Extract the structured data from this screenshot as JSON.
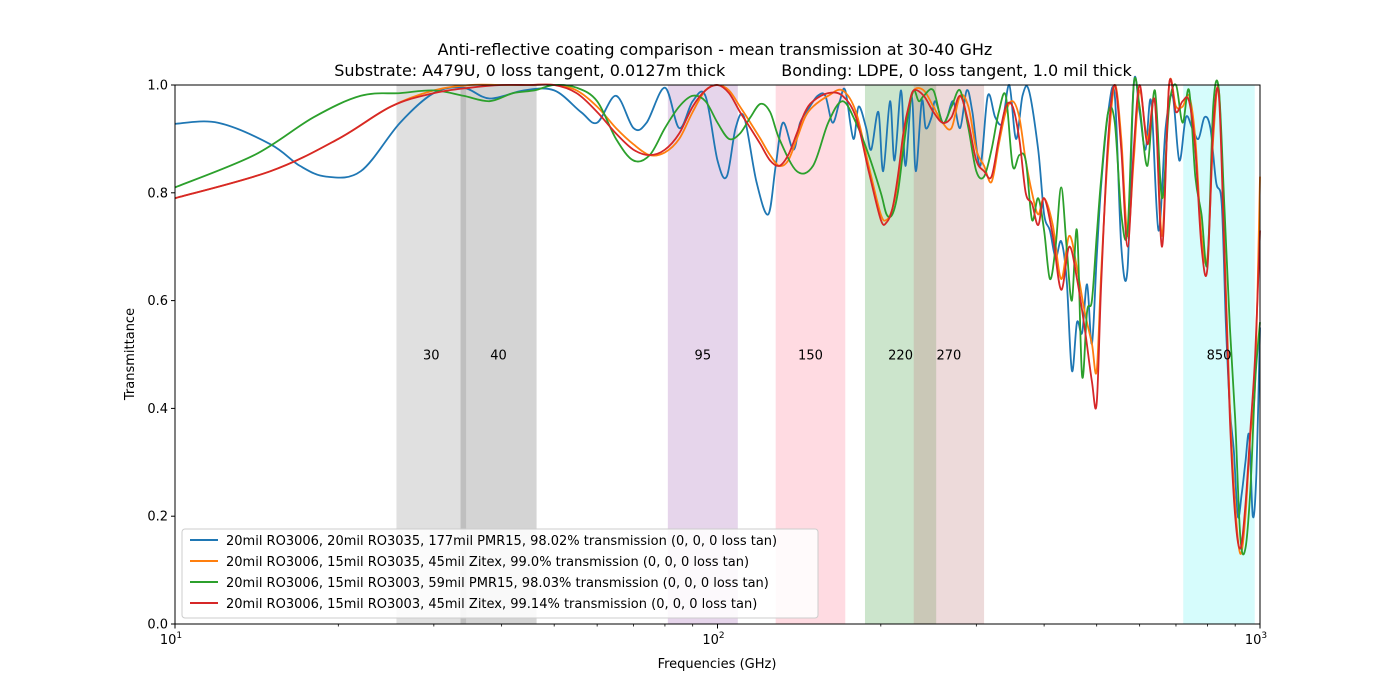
{
  "chart_data": {
    "type": "line",
    "title_line1": "Anti-reflective coating comparison - mean transmission at 30-40 GHz",
    "title_line2": "Substrate: A479U, 0 loss tangent, 0.0127m thick           Bonding: LDPE, 0 loss tangent, 1.0 mil thick",
    "xlabel": "Frequencies (GHz)",
    "ylabel": "Transmittance",
    "xscale": "log",
    "xlim": [
      10,
      1000
    ],
    "ylim": [
      0,
      1.0
    ],
    "x_ticks": [
      {
        "value": 10,
        "base": "10",
        "exp": "1"
      },
      {
        "value": 100,
        "base": "10",
        "exp": "2"
      },
      {
        "value": 1000,
        "base": "10",
        "exp": "3"
      }
    ],
    "y_ticks": [
      {
        "value": 0,
        "label": "0.0"
      },
      {
        "value": 0.2,
        "label": "0.2"
      },
      {
        "value": 0.4,
        "label": "0.4"
      },
      {
        "value": 0.6,
        "label": "0.6"
      },
      {
        "value": 0.8,
        "label": "0.8"
      },
      {
        "value": 1.0,
        "label": "1.0"
      }
    ],
    "bands": [
      {
        "label": "30",
        "x0": 25.6,
        "x1": 34.4,
        "color": "#a0a0a0"
      },
      {
        "label": "40",
        "x0": 33.6,
        "x1": 46.4,
        "color": "#7a7a7a"
      },
      {
        "label": "95",
        "x0": 81,
        "x1": 109,
        "color": "#b07cc0"
      },
      {
        "label": "150",
        "x0": 128,
        "x1": 172,
        "color": "#ff8fa6"
      },
      {
        "label": "220",
        "x0": 187,
        "x1": 253,
        "color": "#5fae5f"
      },
      {
        "label": "270",
        "x0": 230,
        "x1": 310,
        "color": "#c88c8c"
      },
      {
        "label": "850",
        "x0": 722,
        "x1": 978,
        "color": "#7ff5f5"
      }
    ],
    "band_label_y": 0.5,
    "series": [
      {
        "name": "20mil RO3006, 20mil RO3035, 177mil PMR15, 98.02% transmission (0, 0, 0 loss tan)",
        "color": "#1f77b4",
        "x": [
          10,
          12,
          15,
          17,
          19,
          22,
          26,
          30,
          34,
          38,
          44,
          50,
          56,
          60,
          65,
          70,
          74,
          80,
          85,
          90,
          95,
          100,
          104,
          108,
          112,
          118,
          124,
          128,
          132,
          138,
          142,
          148,
          153,
          158,
          163,
          168,
          172,
          178,
          182,
          188,
          192,
          198,
          202,
          208,
          212,
          218,
          222,
          228,
          232,
          238,
          242,
          248,
          252,
          260,
          265,
          272,
          280,
          288,
          295,
          305,
          315,
          325,
          335,
          345,
          355,
          365,
          375,
          390,
          400,
          410,
          420,
          430,
          440,
          450,
          460,
          470,
          480,
          490,
          500,
          510,
          525,
          540,
          555,
          570,
          585,
          600,
          615,
          630,
          650,
          670,
          690,
          710,
          730,
          750,
          770,
          790,
          810,
          830,
          850,
          865,
          880,
          895,
          910,
          925,
          940,
          955,
          970,
          985,
          1000
        ],
        "y": [
          0.928,
          0.93,
          0.89,
          0.85,
          0.83,
          0.84,
          0.93,
          0.985,
          0.995,
          0.975,
          0.99,
          0.99,
          0.95,
          0.93,
          0.98,
          0.92,
          0.93,
          0.995,
          0.92,
          0.97,
          0.98,
          0.86,
          0.83,
          0.92,
          0.94,
          0.82,
          0.76,
          0.85,
          0.93,
          0.88,
          0.93,
          0.96,
          0.98,
          0.98,
          0.93,
          0.97,
          0.99,
          0.9,
          0.96,
          0.92,
          0.88,
          0.95,
          0.84,
          0.97,
          0.86,
          0.99,
          0.85,
          0.98,
          0.84,
          0.97,
          0.92,
          0.94,
          0.97,
          0.93,
          0.94,
          0.97,
          0.92,
          0.99,
          0.95,
          0.85,
          0.98,
          0.94,
          0.93,
          1.0,
          0.9,
          0.98,
          0.99,
          0.88,
          0.76,
          0.73,
          0.68,
          0.71,
          0.64,
          0.47,
          0.56,
          0.54,
          0.63,
          0.52,
          0.68,
          0.82,
          0.95,
          0.98,
          0.7,
          0.66,
          1.0,
          0.95,
          0.88,
          0.97,
          0.73,
          0.92,
          0.98,
          0.86,
          0.94,
          0.92,
          0.9,
          0.94,
          0.92,
          0.82,
          0.78,
          0.56,
          0.4,
          0.32,
          0.2,
          0.24,
          0.3,
          0.35,
          0.2,
          0.28,
          0.55
        ]
      },
      {
        "name": "20mil RO3006, 15mil RO3035, 45mil Zitex, 99.0% transmission (0, 0, 0 loss tan)",
        "color": "#ff7f0e",
        "x": [
          10,
          15,
          20,
          25,
          30,
          35,
          40,
          45,
          50,
          55,
          60,
          65,
          70,
          75,
          80,
          85,
          90,
          95,
          100,
          105,
          110,
          115,
          120,
          125,
          130,
          135,
          140,
          145,
          150,
          160,
          170,
          180,
          190,
          200,
          205,
          210,
          215,
          220,
          225,
          230,
          240,
          250,
          260,
          270,
          280,
          290,
          300,
          310,
          320,
          330,
          340,
          350,
          360,
          370,
          380,
          390,
          400,
          415,
          430,
          445,
          460,
          475,
          490,
          500,
          510,
          525,
          540,
          555,
          570,
          585,
          600,
          620,
          640,
          660,
          680,
          700,
          720,
          740,
          760,
          780,
          800,
          820,
          840,
          860,
          880,
          900,
          920,
          940,
          960,
          980,
          1000
        ],
        "y": [
          0.79,
          0.84,
          0.9,
          0.96,
          0.99,
          1.0,
          1.0,
          1.0,
          1.0,
          0.99,
          0.96,
          0.92,
          0.89,
          0.87,
          0.875,
          0.9,
          0.95,
          0.99,
          1.0,
          0.99,
          0.96,
          0.93,
          0.9,
          0.87,
          0.85,
          0.86,
          0.9,
          0.94,
          0.96,
          0.98,
          0.99,
          0.95,
          0.85,
          0.76,
          0.75,
          0.77,
          0.82,
          0.9,
          0.95,
          0.99,
          0.99,
          0.96,
          0.93,
          0.92,
          0.98,
          0.96,
          0.88,
          0.85,
          0.82,
          0.89,
          0.95,
          0.97,
          0.94,
          0.86,
          0.8,
          0.76,
          0.79,
          0.74,
          0.64,
          0.72,
          0.66,
          0.58,
          0.52,
          0.47,
          0.66,
          0.88,
          1.0,
          0.9,
          0.72,
          0.86,
          0.99,
          0.9,
          0.97,
          0.72,
          1.0,
          0.96,
          0.96,
          0.98,
          0.9,
          0.72,
          0.68,
          0.9,
          0.99,
          0.7,
          0.4,
          0.22,
          0.13,
          0.2,
          0.35,
          0.45,
          0.83
        ]
      },
      {
        "name": "20mil RO3006, 15mil RO3003, 59mil PMR15, 98.03% transmission (0, 0, 0 loss tan)",
        "color": "#2ca02c",
        "x": [
          10,
          14,
          18,
          22,
          26,
          30,
          34,
          38,
          42,
          46,
          50,
          55,
          60,
          65,
          70,
          75,
          80,
          85,
          90,
          95,
          100,
          105,
          110,
          115,
          120,
          125,
          130,
          140,
          150,
          160,
          170,
          180,
          190,
          200,
          205,
          210,
          215,
          220,
          225,
          230,
          235,
          240,
          250,
          260,
          270,
          280,
          290,
          300,
          310,
          320,
          330,
          340,
          350,
          360,
          370,
          380,
          390,
          400,
          410,
          420,
          430,
          440,
          450,
          460,
          470,
          480,
          490,
          500,
          510,
          525,
          540,
          555,
          570,
          585,
          600,
          620,
          640,
          660,
          680,
          700,
          720,
          740,
          760,
          780,
          800,
          820,
          840,
          860,
          880,
          900,
          920,
          940,
          960,
          980,
          1000
        ],
        "y": [
          0.81,
          0.87,
          0.94,
          0.98,
          0.985,
          0.99,
          0.98,
          0.97,
          0.985,
          0.99,
          1.0,
          0.995,
          0.97,
          0.9,
          0.86,
          0.87,
          0.92,
          0.96,
          0.98,
          0.97,
          0.93,
          0.9,
          0.91,
          0.94,
          0.965,
          0.95,
          0.9,
          0.84,
          0.85,
          0.93,
          0.97,
          0.93,
          0.87,
          0.8,
          0.76,
          0.76,
          0.8,
          0.88,
          0.95,
          0.99,
          0.97,
          0.98,
          0.99,
          0.93,
          0.96,
          0.99,
          0.92,
          0.84,
          0.83,
          0.88,
          0.95,
          0.98,
          0.85,
          0.87,
          0.86,
          0.75,
          0.79,
          0.73,
          0.64,
          0.7,
          0.81,
          0.7,
          0.6,
          0.73,
          0.46,
          0.58,
          0.6,
          0.72,
          0.83,
          0.95,
          0.93,
          0.76,
          0.73,
          1.0,
          0.96,
          0.85,
          0.99,
          0.79,
          0.96,
          1.0,
          0.93,
          0.99,
          0.83,
          0.76,
          0.67,
          0.96,
          0.99,
          0.77,
          0.55,
          0.38,
          0.16,
          0.14,
          0.25,
          0.45,
          0.56
        ]
      },
      {
        "name": "20mil RO3006, 15mil RO3003, 45mil Zitex, 99.14% transmission (0, 0, 0 loss tan)",
        "color": "#d62728",
        "x": [
          10,
          15,
          20,
          25,
          30,
          35,
          40,
          45,
          50,
          55,
          60,
          65,
          70,
          75,
          80,
          85,
          90,
          95,
          100,
          105,
          110,
          115,
          120,
          125,
          130,
          135,
          140,
          145,
          150,
          160,
          170,
          180,
          190,
          200,
          205,
          210,
          215,
          220,
          225,
          230,
          240,
          250,
          260,
          270,
          280,
          290,
          300,
          310,
          320,
          330,
          340,
          350,
          360,
          370,
          380,
          390,
          400,
          415,
          430,
          445,
          460,
          475,
          490,
          500,
          510,
          525,
          540,
          555,
          570,
          585,
          600,
          620,
          640,
          660,
          680,
          700,
          720,
          740,
          760,
          780,
          800,
          820,
          840,
          860,
          880,
          900,
          920,
          940,
          960,
          980,
          1000
        ],
        "y": [
          0.79,
          0.84,
          0.9,
          0.96,
          0.985,
          0.995,
          1.0,
          1.0,
          1.0,
          0.985,
          0.95,
          0.91,
          0.88,
          0.87,
          0.88,
          0.91,
          0.96,
          0.99,
          1.0,
          0.985,
          0.95,
          0.92,
          0.89,
          0.86,
          0.85,
          0.87,
          0.91,
          0.95,
          0.97,
          0.985,
          0.98,
          0.94,
          0.84,
          0.75,
          0.745,
          0.77,
          0.83,
          0.91,
          0.96,
          0.99,
          0.98,
          0.95,
          0.93,
          0.94,
          0.98,
          0.93,
          0.86,
          0.84,
          0.83,
          0.9,
          0.96,
          0.96,
          0.9,
          0.8,
          0.78,
          0.74,
          0.79,
          0.72,
          0.62,
          0.7,
          0.64,
          0.55,
          0.45,
          0.41,
          0.64,
          0.9,
          1.0,
          0.88,
          0.7,
          0.88,
          1.0,
          0.89,
          0.97,
          0.7,
          1.0,
          0.95,
          0.97,
          0.97,
          0.88,
          0.7,
          0.66,
          0.92,
          0.98,
          0.68,
          0.38,
          0.2,
          0.14,
          0.22,
          0.36,
          0.5,
          0.73
        ]
      }
    ]
  }
}
